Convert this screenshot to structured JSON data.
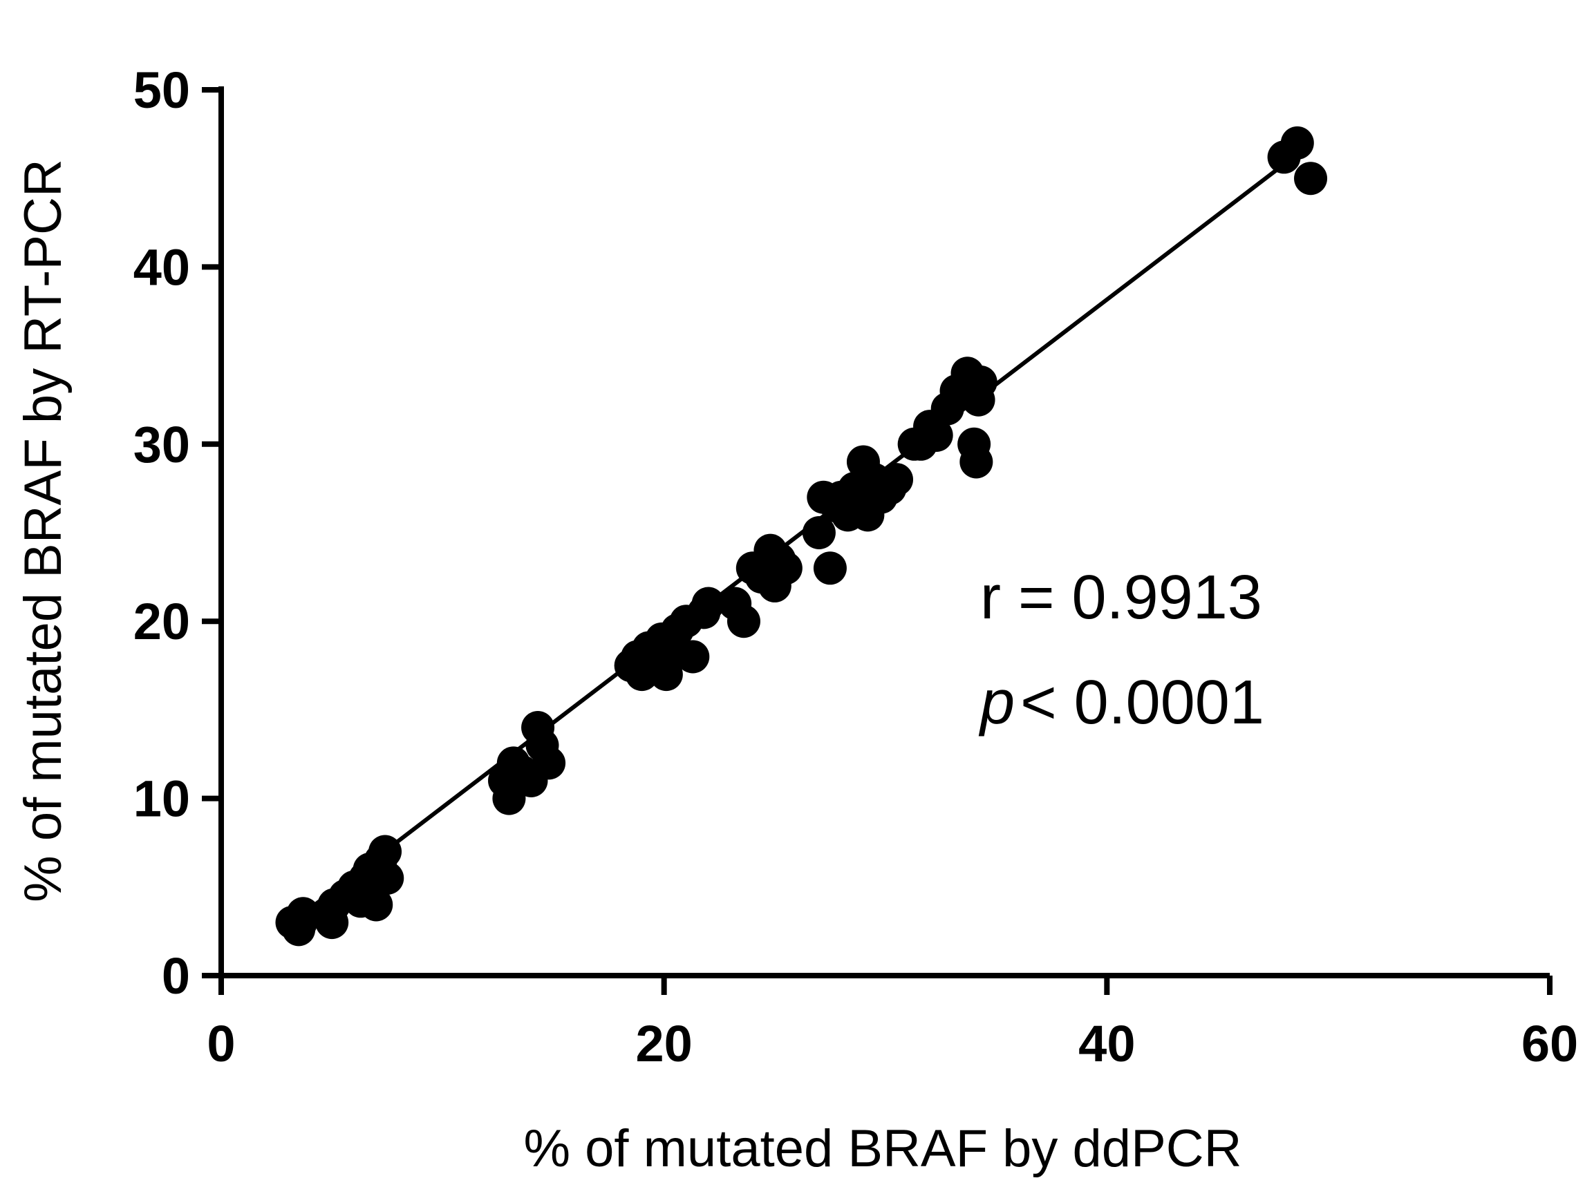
{
  "chart_data": {
    "type": "scatter",
    "xlabel": "% of mutated BRAF by ddPCR",
    "ylabel": "% of mutated BRAF by RT-PCR",
    "xlim": [
      0,
      60
    ],
    "ylim": [
      0,
      50
    ],
    "x_ticks": [
      "0",
      "20",
      "40",
      "60"
    ],
    "y_ticks": [
      "0",
      "10",
      "20",
      "30",
      "40",
      "50"
    ],
    "x_tick_values": [
      0,
      20,
      40,
      60
    ],
    "y_tick_values": [
      0,
      10,
      20,
      30,
      40,
      50
    ],
    "grid": false,
    "marker_color": "#000000",
    "series": [
      {
        "x": [
          3.2,
          3.5,
          3.7,
          3.6,
          5.0,
          5.1,
          5.6,
          6.0,
          6.3,
          6.5,
          6.7,
          7.0,
          7.2,
          7.4,
          7.5,
          12.8,
          13.0,
          13.2,
          13.6,
          14.0,
          14.3,
          14.5,
          14.8,
          18.5,
          18.8,
          19.0,
          19.3,
          19.6,
          19.9,
          20.1,
          20.3,
          20.6,
          21.0,
          21.3,
          21.8,
          22.0,
          23.2,
          23.6,
          24.0,
          24.4,
          24.8,
          25.0,
          25.2,
          25.5,
          27.0,
          27.2,
          27.5,
          27.8,
          28.0,
          28.3,
          28.6,
          29.0,
          29.2,
          29.5,
          29.8,
          30.2,
          30.5,
          31.3,
          31.6,
          32.0,
          32.3,
          32.8,
          33.2,
          33.7,
          34.0,
          34.1,
          34.2,
          34.3,
          48.0,
          48.6,
          49.2
        ],
        "y": [
          3.0,
          2.6,
          3.5,
          3.0,
          3.0,
          4.0,
          4.5,
          5.0,
          4.2,
          5.5,
          6.0,
          4.0,
          6.5,
          7.0,
          5.5,
          11.0,
          10.0,
          12.0,
          11.5,
          11.0,
          14.0,
          13.0,
          12.0,
          17.5,
          18.0,
          17.0,
          18.5,
          17.5,
          19.0,
          17.0,
          18.5,
          19.5,
          20.0,
          18.0,
          20.5,
          21.0,
          21.0,
          20.0,
          23.0,
          22.5,
          24.0,
          22.0,
          23.5,
          23.0,
          25.0,
          27.0,
          23.0,
          26.5,
          27.0,
          26.0,
          27.5,
          29.0,
          26.0,
          28.0,
          27.0,
          27.5,
          28.0,
          30.0,
          30.0,
          31.0,
          30.5,
          32.0,
          33.0,
          34.0,
          30.0,
          29.0,
          32.5,
          33.5,
          46.2,
          47.0,
          45.0
        ]
      }
    ],
    "fit_line": {
      "x": [
        3.5,
        48.0
      ],
      "y": [
        3.3,
        45.8
      ]
    },
    "annotations": {
      "r_text": "r = 0.9913",
      "p_symbol": "p",
      "p_text": "< 0.0001"
    }
  }
}
